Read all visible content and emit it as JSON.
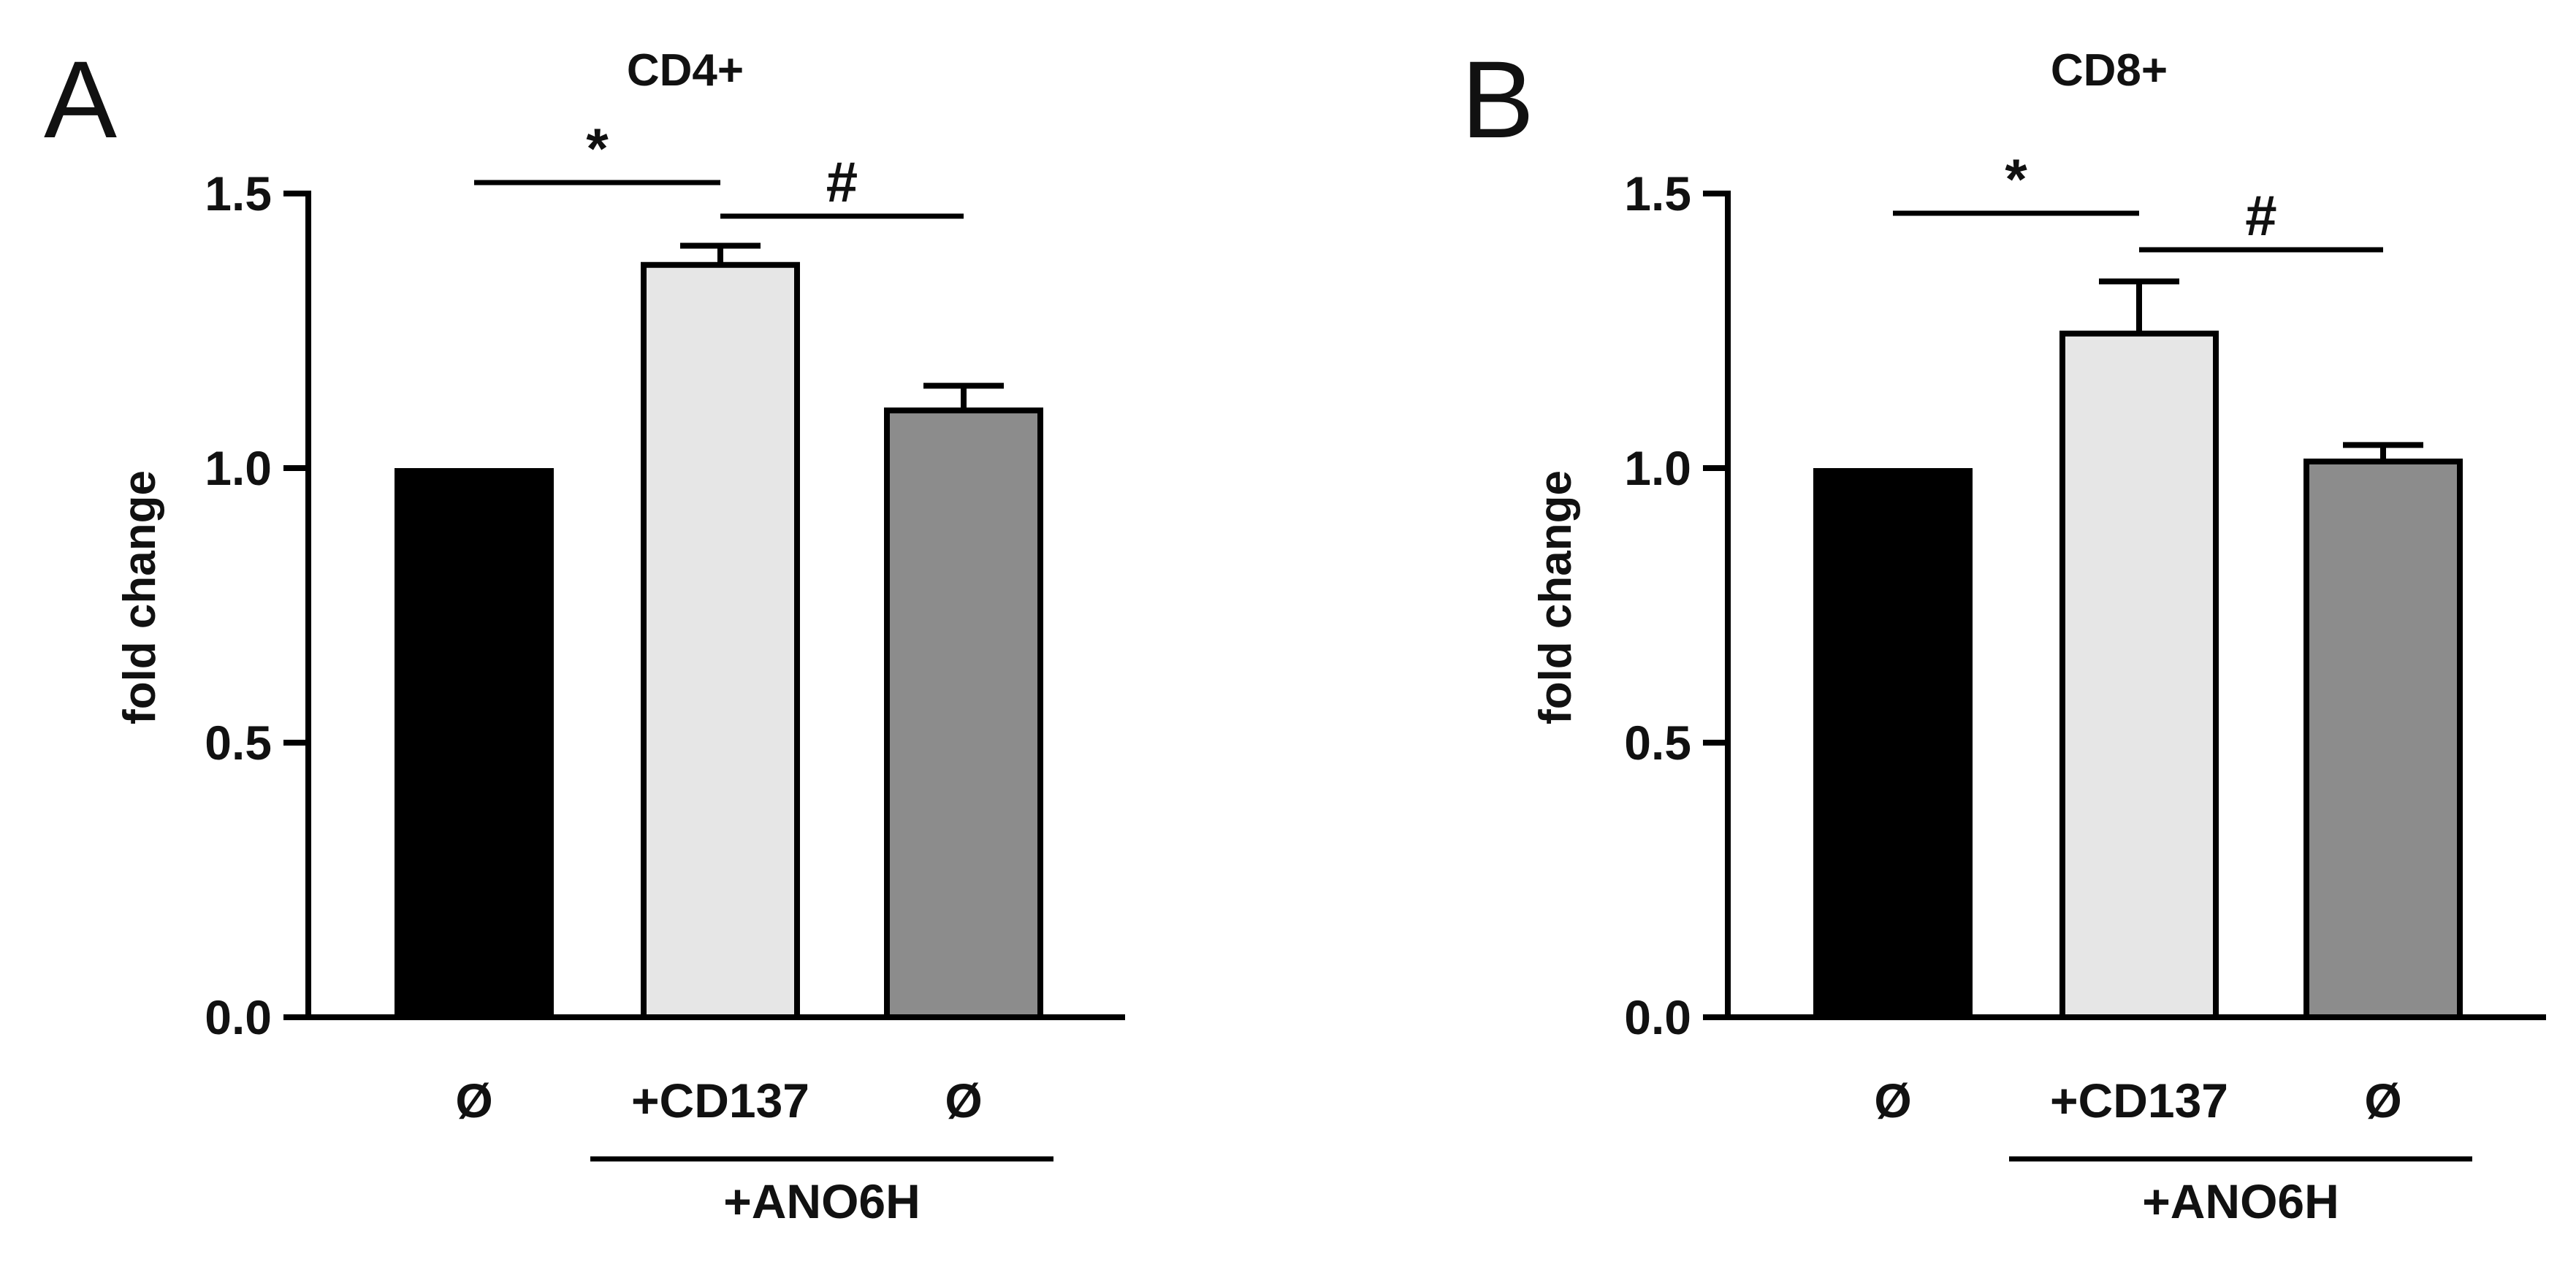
{
  "panels": [
    {
      "panel_label": "A",
      "chart_data": {
        "type": "bar",
        "title": "CD4+",
        "xlabel": "",
        "ylabel": "fold change",
        "ylim": [
          0,
          1.5
        ],
        "yticks": [
          0.0,
          0.5,
          1.0,
          1.5
        ],
        "ytick_labels": [
          "0.0",
          "0.5",
          "1.0",
          "1.5"
        ],
        "categories": [
          "Ø",
          "+CD137",
          "Ø"
        ],
        "values": [
          1.0,
          1.37,
          1.105
        ],
        "errors": [
          0,
          0.035,
          0.045
        ],
        "colors": [
          "#000000",
          "#e6e6e6",
          "#8c8c8c"
        ],
        "group_label": "+ANO6H",
        "group_span": [
          1,
          2
        ],
        "significance": [
          {
            "from": 0,
            "to": 1,
            "label": "*"
          },
          {
            "from": 1,
            "to": 2,
            "label": "#"
          }
        ]
      }
    },
    {
      "panel_label": "B",
      "chart_data": {
        "type": "bar",
        "title": "CD8+",
        "xlabel": "",
        "ylabel": "fold change",
        "ylim": [
          0,
          1.5
        ],
        "yticks": [
          0.0,
          0.5,
          1.0,
          1.5
        ],
        "ytick_labels": [
          "0.0",
          "0.5",
          "1.0",
          "1.5"
        ],
        "categories": [
          "Ø",
          "+CD137",
          "Ø"
        ],
        "values": [
          1.0,
          1.245,
          1.012
        ],
        "errors": [
          0,
          0.095,
          0.03
        ],
        "colors": [
          "#000000",
          "#e6e6e6",
          "#8c8c8c"
        ],
        "group_label": "+ANO6H",
        "group_span": [
          1,
          2
        ],
        "significance": [
          {
            "from": 0,
            "to": 1,
            "label": "*"
          },
          {
            "from": 1,
            "to": 2,
            "label": "#"
          }
        ]
      }
    }
  ]
}
